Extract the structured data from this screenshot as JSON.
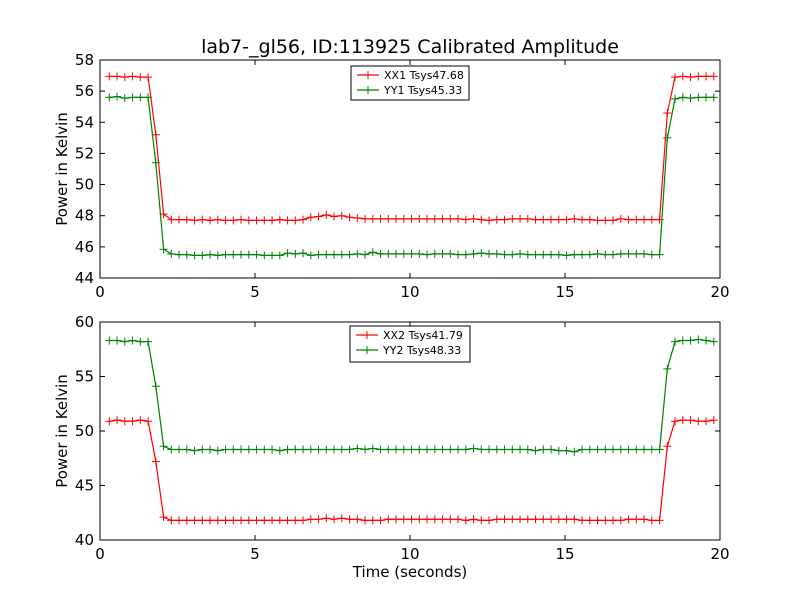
{
  "chart_data": [
    {
      "type": "line",
      "title": "lab7-_gl56, ID:113925 Calibrated Amplitude",
      "xlabel": "",
      "ylabel": "Power in Kelvin",
      "xlim": [
        0,
        20
      ],
      "ylim": [
        44,
        58
      ],
      "xticks": [
        "0",
        "5",
        "10",
        "15",
        "20"
      ],
      "yticks": [
        "44",
        "46",
        "48",
        "50",
        "52",
        "54",
        "56",
        "58"
      ],
      "legend_position": "top-center",
      "grid": false,
      "x": [
        0.3,
        0.55,
        0.8,
        1.05,
        1.3,
        1.55,
        1.8,
        2.05,
        2.3,
        2.55,
        2.8,
        3.05,
        3.3,
        3.55,
        3.8,
        4.05,
        4.3,
        4.55,
        4.8,
        5.05,
        5.3,
        5.55,
        5.8,
        6.05,
        6.3,
        6.55,
        6.8,
        7.05,
        7.3,
        7.55,
        7.8,
        8.05,
        8.3,
        8.55,
        8.8,
        9.05,
        9.3,
        9.55,
        9.8,
        10.05,
        10.3,
        10.55,
        10.8,
        11.05,
        11.3,
        11.55,
        11.8,
        12.05,
        12.3,
        12.55,
        12.8,
        13.05,
        13.3,
        13.55,
        13.8,
        14.05,
        14.3,
        14.55,
        14.8,
        15.05,
        15.3,
        15.55,
        15.8,
        16.05,
        16.3,
        16.55,
        16.8,
        17.05,
        17.3,
        17.55,
        17.8,
        18.05,
        18.3,
        18.55,
        18.8,
        19.05,
        19.3,
        19.55,
        19.8
      ],
      "series": [
        {
          "name": "XX1 Tsys47.68",
          "color": "#ff0000",
          "values": [
            56.95,
            56.95,
            56.9,
            56.95,
            56.9,
            56.9,
            53.2,
            48.1,
            47.75,
            47.75,
            47.75,
            47.7,
            47.75,
            47.7,
            47.75,
            47.7,
            47.7,
            47.75,
            47.7,
            47.7,
            47.7,
            47.7,
            47.75,
            47.7,
            47.7,
            47.75,
            47.9,
            47.95,
            48.05,
            47.95,
            48.0,
            47.9,
            47.85,
            47.8,
            47.8,
            47.8,
            47.8,
            47.8,
            47.8,
            47.8,
            47.8,
            47.8,
            47.8,
            47.8,
            47.8,
            47.8,
            47.75,
            47.8,
            47.75,
            47.7,
            47.75,
            47.75,
            47.8,
            47.8,
            47.8,
            47.75,
            47.75,
            47.75,
            47.75,
            47.75,
            47.8,
            47.75,
            47.75,
            47.7,
            47.7,
            47.7,
            47.8,
            47.75,
            47.75,
            47.75,
            47.75,
            47.75,
            54.6,
            56.9,
            56.95,
            56.9,
            56.95,
            56.95,
            56.95
          ]
        },
        {
          "name": "YY1 Tsys45.33",
          "color": "#008000",
          "values": [
            55.6,
            55.65,
            55.55,
            55.6,
            55.6,
            55.6,
            51.4,
            45.85,
            45.55,
            45.5,
            45.5,
            45.45,
            45.45,
            45.5,
            45.45,
            45.5,
            45.5,
            45.5,
            45.5,
            45.5,
            45.45,
            45.45,
            45.45,
            45.6,
            45.55,
            45.6,
            45.45,
            45.5,
            45.5,
            45.5,
            45.5,
            45.5,
            45.55,
            45.5,
            45.65,
            45.55,
            45.55,
            45.55,
            45.55,
            45.55,
            45.55,
            45.5,
            45.55,
            45.55,
            45.55,
            45.5,
            45.5,
            45.55,
            45.6,
            45.55,
            45.55,
            45.5,
            45.5,
            45.55,
            45.5,
            45.5,
            45.5,
            45.5,
            45.5,
            45.45,
            45.5,
            45.5,
            45.5,
            45.55,
            45.5,
            45.5,
            45.55,
            45.55,
            45.55,
            45.55,
            45.5,
            45.5,
            53.0,
            55.5,
            55.6,
            55.55,
            55.6,
            55.6,
            55.6
          ]
        }
      ]
    },
    {
      "type": "line",
      "title": "",
      "xlabel": "Time (seconds)",
      "ylabel": "Power in Kelvin",
      "xlim": [
        0,
        20
      ],
      "ylim": [
        40,
        60
      ],
      "xticks": [
        "0",
        "5",
        "10",
        "15",
        "20"
      ],
      "yticks": [
        "40",
        "45",
        "50",
        "55",
        "60"
      ],
      "legend_position": "top-center",
      "grid": false,
      "x": [
        0.3,
        0.55,
        0.8,
        1.05,
        1.3,
        1.55,
        1.8,
        2.05,
        2.3,
        2.55,
        2.8,
        3.05,
        3.3,
        3.55,
        3.8,
        4.05,
        4.3,
        4.55,
        4.8,
        5.05,
        5.3,
        5.55,
        5.8,
        6.05,
        6.3,
        6.55,
        6.8,
        7.05,
        7.3,
        7.55,
        7.8,
        8.05,
        8.3,
        8.55,
        8.8,
        9.05,
        9.3,
        9.55,
        9.8,
        10.05,
        10.3,
        10.55,
        10.8,
        11.05,
        11.3,
        11.55,
        11.8,
        12.05,
        12.3,
        12.55,
        12.8,
        13.05,
        13.3,
        13.55,
        13.8,
        14.05,
        14.3,
        14.55,
        14.8,
        15.05,
        15.3,
        15.55,
        15.8,
        16.05,
        16.3,
        16.55,
        16.8,
        17.05,
        17.3,
        17.55,
        17.8,
        18.05,
        18.3,
        18.55,
        18.8,
        19.05,
        19.3,
        19.55,
        19.8
      ],
      "series": [
        {
          "name": "XX2 Tsys41.79",
          "color": "#ff0000",
          "values": [
            50.9,
            51.0,
            50.9,
            50.9,
            51.0,
            50.9,
            47.2,
            42.1,
            41.8,
            41.8,
            41.8,
            41.8,
            41.8,
            41.8,
            41.8,
            41.8,
            41.8,
            41.8,
            41.8,
            41.8,
            41.8,
            41.8,
            41.8,
            41.8,
            41.8,
            41.8,
            41.9,
            41.9,
            42.0,
            41.9,
            42.0,
            41.9,
            41.9,
            41.8,
            41.8,
            41.8,
            41.9,
            41.9,
            41.9,
            41.9,
            41.9,
            41.9,
            41.9,
            41.9,
            41.9,
            41.9,
            41.8,
            41.9,
            41.8,
            41.8,
            41.9,
            41.9,
            41.9,
            41.9,
            41.9,
            41.9,
            41.9,
            41.9,
            41.9,
            41.9,
            41.9,
            41.8,
            41.8,
            41.8,
            41.8,
            41.8,
            41.8,
            41.9,
            41.9,
            41.9,
            41.8,
            41.8,
            48.6,
            50.9,
            51.0,
            51.0,
            50.9,
            50.9,
            51.0
          ]
        },
        {
          "name": "YY2 Tsys48.33",
          "color": "#008000",
          "values": [
            58.3,
            58.3,
            58.2,
            58.3,
            58.2,
            58.2,
            54.1,
            48.6,
            48.3,
            48.3,
            48.3,
            48.2,
            48.3,
            48.3,
            48.2,
            48.3,
            48.3,
            48.3,
            48.3,
            48.3,
            48.3,
            48.3,
            48.2,
            48.3,
            48.3,
            48.3,
            48.3,
            48.3,
            48.3,
            48.3,
            48.3,
            48.3,
            48.4,
            48.3,
            48.4,
            48.3,
            48.3,
            48.3,
            48.3,
            48.3,
            48.3,
            48.3,
            48.3,
            48.3,
            48.3,
            48.3,
            48.3,
            48.4,
            48.3,
            48.3,
            48.3,
            48.3,
            48.3,
            48.3,
            48.3,
            48.2,
            48.3,
            48.3,
            48.2,
            48.2,
            48.1,
            48.3,
            48.3,
            48.3,
            48.3,
            48.3,
            48.3,
            48.3,
            48.3,
            48.3,
            48.3,
            48.3,
            55.7,
            58.2,
            58.3,
            58.3,
            58.4,
            58.3,
            58.2
          ]
        }
      ]
    }
  ]
}
